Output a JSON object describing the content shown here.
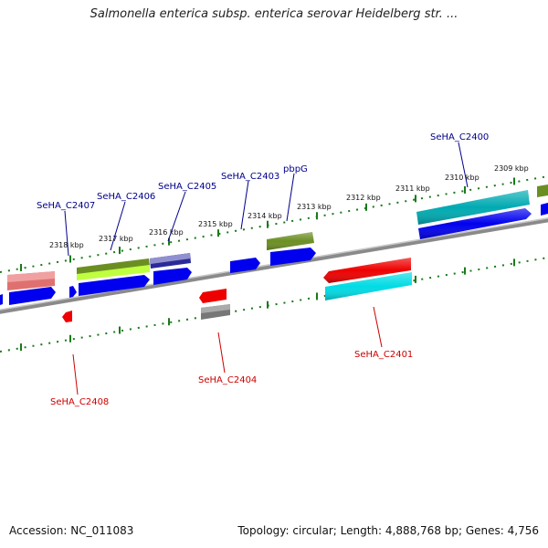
{
  "title": "Salmonella enterica subsp. enterica serovar Heidelberg str. ...",
  "footer": {
    "accession": "Accession: NC_011083",
    "summary": "Topology: circular; Length: 4,888,768 bp; Genes: 4,756"
  },
  "ticks": [
    "2309 kbp",
    "2310 kbp",
    "2311 kbp",
    "2312 kbp",
    "2313 kbp",
    "2314 kbp",
    "2315 kbp",
    "2316 kbp",
    "2317 kbp",
    "2318 kbp"
  ],
  "genes_top": [
    "SeHA_C2400",
    "pbpG",
    "SeHA_C2403",
    "SeHA_C2405",
    "SeHA_C2406",
    "SeHA_C2407"
  ],
  "genes_bottom": [
    "SeHA_C2401",
    "SeHA_C2404",
    "SeHA_C2408"
  ],
  "colors": {
    "label_top": "#00008b",
    "label_bottom": "#cc0000",
    "backbone": "#888888",
    "tick": "#1a7a1a",
    "blue": "#0000ee",
    "red": "#ee0000",
    "cyan": "#00d8e0",
    "olive": "#6b8e23",
    "teal": "#00a8b0",
    "pink": "#e07070",
    "gray": "#777777",
    "navy": "#000080",
    "lime": "#bfff3f"
  }
}
